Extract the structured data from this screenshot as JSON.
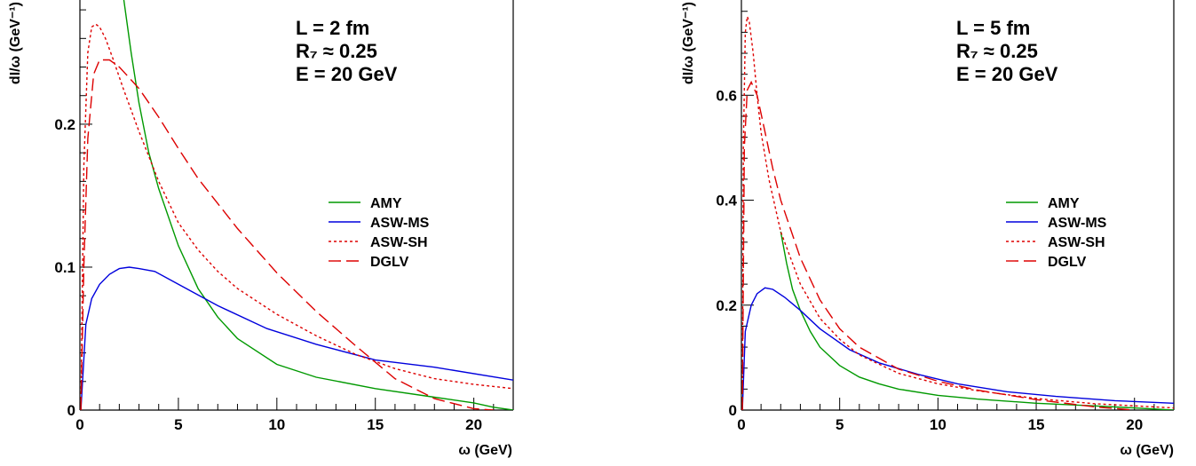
{
  "chart_data": [
    {
      "type": "line",
      "xlabel": "ω (GeV)",
      "ylabel": "dI/ω (GeV⁻¹)",
      "xlim": [
        0,
        22
      ],
      "ylim": [
        0,
        0.29
      ],
      "x_ticks": [
        0,
        5,
        10,
        15,
        20
      ],
      "y_ticks": [
        0,
        0.1,
        0.2
      ],
      "y_tick_labels": [
        "0",
        "0.1",
        "0.2"
      ],
      "annotations": [
        "L = 2 fm",
        "R₇ ≈ 0.25",
        "E = 20 GeV"
      ],
      "legend_position": "right",
      "series": [
        {
          "name": "AMY",
          "color": "#009900",
          "dash": "",
          "x": [
            2.2,
            2.6,
            3,
            3.5,
            4,
            5,
            6,
            7,
            8,
            10,
            12,
            15,
            18,
            20,
            21,
            22
          ],
          "y": [
            0.29,
            0.25,
            0.215,
            0.18,
            0.155,
            0.115,
            0.085,
            0.065,
            0.05,
            0.032,
            0.023,
            0.015,
            0.009,
            0.005,
            0.002,
            0.0
          ]
        },
        {
          "name": "ASW-MS",
          "color": "#0000dd",
          "dash": "",
          "x": [
            0.05,
            0.3,
            0.6,
            1,
            1.5,
            2,
            2.5,
            3,
            3.8,
            5,
            7,
            9.5,
            12,
            15,
            18,
            22
          ],
          "y": [
            0.0,
            0.06,
            0.078,
            0.088,
            0.095,
            0.099,
            0.1,
            0.099,
            0.097,
            0.088,
            0.073,
            0.057,
            0.046,
            0.035,
            0.03,
            0.021
          ]
        },
        {
          "name": "ASW-SH",
          "color": "#dd0000",
          "dash": "3,3",
          "x": [
            0.05,
            0.2,
            0.4,
            0.6,
            0.8,
            1,
            1.3,
            1.7,
            2.2,
            3,
            4,
            5,
            6,
            7,
            8,
            10,
            12,
            14,
            16,
            18,
            20,
            22
          ],
          "y": [
            0.0,
            0.17,
            0.25,
            0.268,
            0.27,
            0.268,
            0.26,
            0.245,
            0.225,
            0.195,
            0.16,
            0.131,
            0.112,
            0.097,
            0.085,
            0.067,
            0.052,
            0.039,
            0.029,
            0.022,
            0.018,
            0.015
          ]
        },
        {
          "name": "DGLV",
          "color": "#dd0000",
          "dash": "14,6",
          "x": [
            0.05,
            0.2,
            0.4,
            0.7,
            1,
            1.5,
            2,
            3,
            4,
            5,
            6,
            8,
            10,
            12,
            14,
            16,
            18,
            20,
            21
          ],
          "y": [
            0.0,
            0.1,
            0.19,
            0.235,
            0.245,
            0.245,
            0.24,
            0.225,
            0.205,
            0.183,
            0.162,
            0.127,
            0.096,
            0.069,
            0.045,
            0.022,
            0.008,
            0.001,
            0.0
          ]
        }
      ]
    },
    {
      "type": "line",
      "xlabel": "ω (GeV)",
      "ylabel": "dI/ω (GeV⁻¹)",
      "xlim": [
        0,
        22
      ],
      "ylim": [
        0,
        0.79
      ],
      "x_ticks": [
        0,
        5,
        10,
        15,
        20
      ],
      "y_ticks": [
        0,
        0.2,
        0.4,
        0.6
      ],
      "y_tick_labels": [
        "0",
        "0.2",
        "0.4",
        "0.6"
      ],
      "annotations": [
        "L = 5 fm",
        "R₇ ≈ 0.25",
        "E = 20 GeV"
      ],
      "legend_position": "right",
      "series": [
        {
          "name": "AMY",
          "color": "#009900",
          "dash": "",
          "x": [
            2,
            2.3,
            2.6,
            3,
            3.5,
            4,
            5,
            6,
            7,
            8,
            10,
            12,
            15,
            18,
            20,
            22
          ],
          "y": [
            0.34,
            0.28,
            0.23,
            0.19,
            0.15,
            0.12,
            0.085,
            0.063,
            0.05,
            0.04,
            0.028,
            0.021,
            0.013,
            0.008,
            0.004,
            0.0
          ]
        },
        {
          "name": "ASW-MS",
          "color": "#0000dd",
          "dash": "",
          "x": [
            0.05,
            0.2,
            0.5,
            0.8,
            1.2,
            1.6,
            2.2,
            3,
            4,
            5.5,
            7,
            9,
            11,
            13.5,
            16,
            19,
            22
          ],
          "y": [
            0.0,
            0.15,
            0.2,
            0.222,
            0.233,
            0.23,
            0.215,
            0.19,
            0.155,
            0.115,
            0.09,
            0.068,
            0.05,
            0.035,
            0.026,
            0.018,
            0.013
          ]
        },
        {
          "name": "ASW-SH",
          "color": "#dd0000",
          "dash": "3,3",
          "x": [
            0.05,
            0.1,
            0.2,
            0.3,
            0.4,
            0.6,
            0.8,
            1,
            1.4,
            2,
            3,
            4,
            5,
            6,
            8,
            10,
            12,
            15,
            18,
            22
          ],
          "y": [
            0.0,
            0.5,
            0.72,
            0.75,
            0.74,
            0.68,
            0.6,
            0.53,
            0.44,
            0.34,
            0.24,
            0.175,
            0.135,
            0.105,
            0.07,
            0.05,
            0.037,
            0.022,
            0.012,
            0.004
          ]
        },
        {
          "name": "DGLV",
          "color": "#dd0000",
          "dash": "14,6",
          "x": [
            0.05,
            0.15,
            0.3,
            0.5,
            0.8,
            1.2,
            1.6,
            2,
            3,
            4,
            5,
            6,
            8,
            10,
            12,
            15,
            18,
            20
          ],
          "y": [
            0.0,
            0.5,
            0.61,
            0.625,
            0.6,
            0.53,
            0.46,
            0.4,
            0.29,
            0.21,
            0.155,
            0.12,
            0.078,
            0.055,
            0.038,
            0.02,
            0.006,
            0.0
          ]
        }
      ]
    }
  ]
}
